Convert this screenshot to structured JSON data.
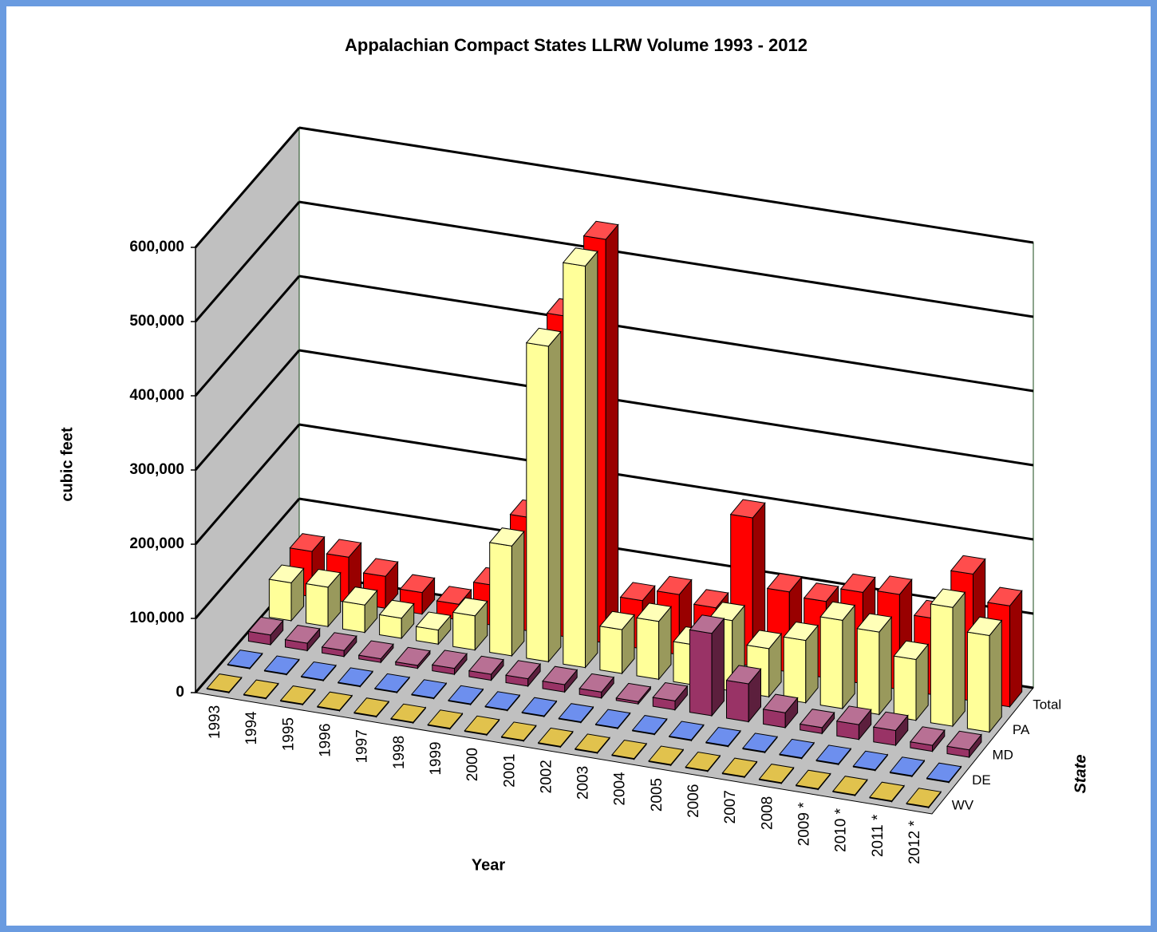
{
  "chart_data": {
    "type": "bar3d",
    "title": "Appalachian Compact States LLRW Volume 1993 - 2012",
    "y_label": "cubic feet",
    "x_label": "Year",
    "z_label": "State",
    "categories": [
      "1993",
      "1994",
      "1995",
      "1996",
      "1997",
      "1998",
      "1999",
      "2000",
      "2001",
      "2002",
      "2003",
      "2004",
      "2005",
      "2006",
      "2007",
      "2008",
      "2009 *",
      "2010 *",
      "2011 *",
      "2012 *"
    ],
    "series": [
      {
        "name": "WV",
        "color": "#d4a800",
        "values": [
          1000,
          1000,
          1000,
          1000,
          1000,
          1000,
          1000,
          1000,
          1000,
          1000,
          1000,
          1000,
          1000,
          1000,
          1000,
          1000,
          1000,
          1000,
          1000,
          1000
        ]
      },
      {
        "name": "DE",
        "color": "#2f5fe6",
        "values": [
          1000,
          1000,
          1000,
          1000,
          1000,
          1000,
          1000,
          1000,
          1000,
          1000,
          1000,
          1000,
          1000,
          1000,
          1000,
          1000,
          1000,
          1000,
          1000,
          1000
        ]
      },
      {
        "name": "MD",
        "color": "#993366",
        "values": [
          13000,
          10000,
          8000,
          5000,
          4000,
          8000,
          8000,
          10000,
          10000,
          8000,
          3000,
          12000,
          111000,
          51000,
          20000,
          8000,
          20000,
          20000,
          8000,
          10000
        ]
      },
      {
        "name": "PA",
        "color": "#ffff99",
        "values": [
          51000,
          53000,
          37000,
          27000,
          19000,
          46000,
          148000,
          425000,
          541000,
          59000,
          78000,
          54000,
          95000,
          65000,
          84000,
          119000,
          111000,
          82000,
          160000,
          130000
        ]
      },
      {
        "name": "Total",
        "color": "#ff0000",
        "values": [
          61000,
          61000,
          43000,
          29000,
          21000,
          54000,
          153000,
          432000,
          544000,
          65000,
          81000,
          71000,
          200000,
          108000,
          103000,
          123000,
          128000,
          103000,
          171000,
          136000
        ]
      }
    ],
    "ylim": [
      0,
      600000
    ],
    "yticks": [
      0,
      {
        "value": 100000,
        "label": "100,000"
      },
      {
        "value": 200000,
        "label": "200,000"
      },
      {
        "value": 300000,
        "label": "300,000"
      },
      {
        "value": 400000,
        "label": "400,000"
      },
      {
        "value": 500000,
        "label": "500,000"
      },
      {
        "value": 600000,
        "label": "600,000"
      }
    ],
    "grid": true
  }
}
